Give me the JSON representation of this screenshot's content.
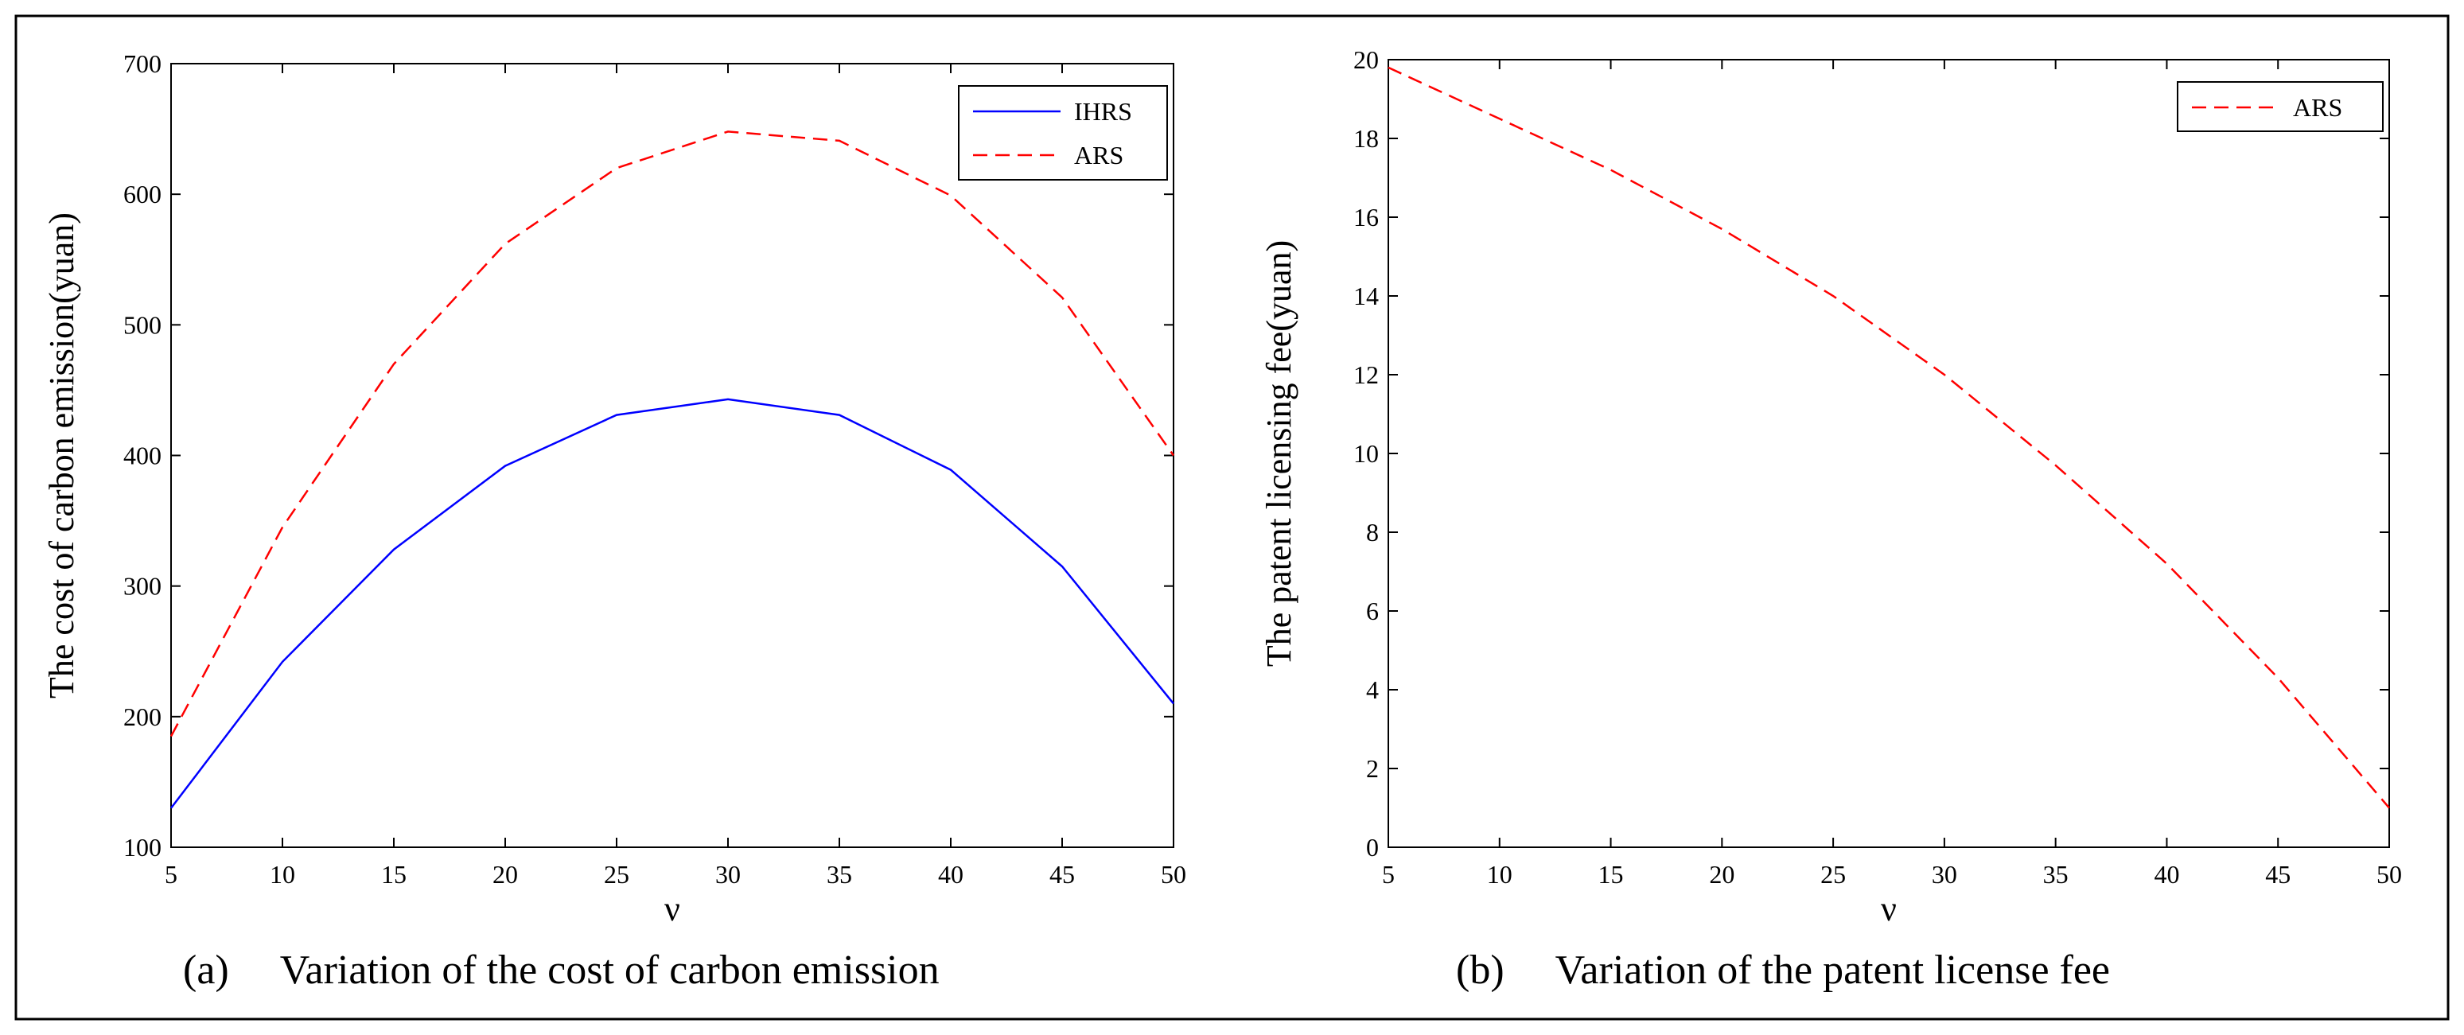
{
  "figure": {
    "panels": [
      {
        "caption_label": "(a)",
        "caption_text": "Variation of the cost of carbon emission"
      },
      {
        "caption_label": "(b)",
        "caption_text": "Variation of the patent license fee"
      }
    ]
  },
  "chart_data": [
    {
      "type": "line",
      "title": "",
      "xlabel": "ν",
      "ylabel": "The cost of carbon emission(yuan)",
      "xlim": [
        5,
        50
      ],
      "ylim": [
        100,
        700
      ],
      "xticks": [
        5,
        10,
        15,
        20,
        25,
        30,
        35,
        40,
        45,
        50
      ],
      "yticks": [
        100,
        200,
        300,
        400,
        500,
        600,
        700
      ],
      "grid": false,
      "legend_position": "top-right",
      "x": [
        5,
        10,
        15,
        20,
        25,
        30,
        35,
        40,
        45,
        50
      ],
      "series": [
        {
          "name": "IHRS",
          "color": "#0000ff",
          "style": "solid",
          "values": [
            130,
            242,
            328,
            392,
            431,
            443,
            431,
            389,
            315,
            210
          ]
        },
        {
          "name": "ARS",
          "color": "#ff0000",
          "style": "dashed",
          "values": [
            185,
            345,
            470,
            562,
            620,
            648,
            641,
            599,
            521,
            400
          ]
        }
      ]
    },
    {
      "type": "line",
      "title": "",
      "xlabel": "ν",
      "ylabel": "The patent licensing fee(yuan)",
      "xlim": [
        5,
        50
      ],
      "ylim": [
        0,
        20
      ],
      "xticks": [
        5,
        10,
        15,
        20,
        25,
        30,
        35,
        40,
        45,
        50
      ],
      "yticks": [
        0,
        2,
        4,
        6,
        8,
        10,
        12,
        14,
        16,
        18,
        20
      ],
      "grid": false,
      "legend_position": "top-right",
      "x": [
        5,
        10,
        15,
        20,
        25,
        30,
        35,
        40,
        45,
        50
      ],
      "series": [
        {
          "name": "ARS",
          "color": "#ff0000",
          "style": "dashed",
          "values": [
            19.8,
            18.5,
            17.2,
            15.7,
            14.0,
            12.0,
            9.7,
            7.2,
            4.3,
            1.0
          ]
        }
      ]
    }
  ]
}
